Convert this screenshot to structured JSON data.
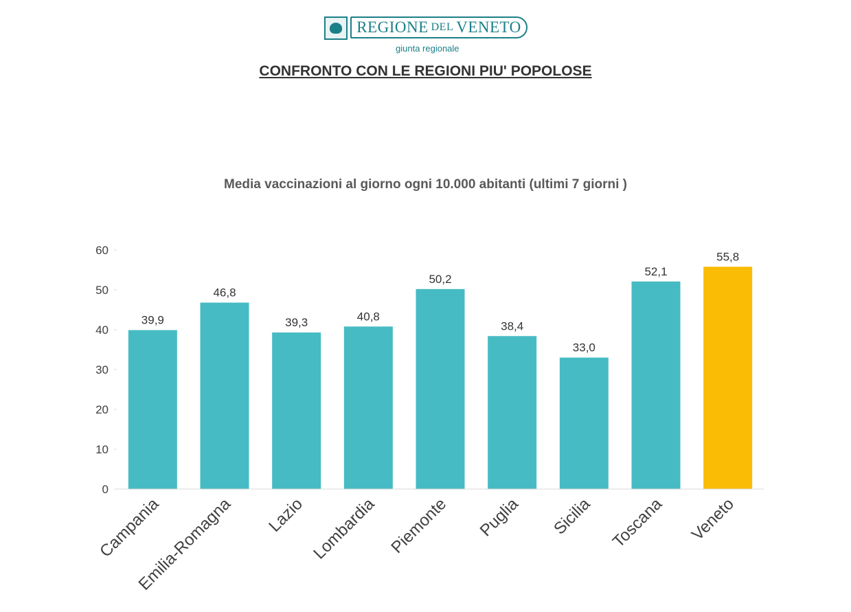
{
  "logo": {
    "name_part1": "REGIONE",
    "name_part2": "DEL",
    "name_part3": "VENETO",
    "subtitle": "giunta regionale"
  },
  "page_title": "CONFRONTO CON LE REGIONI PIU' POPOLOSE",
  "chart_data": {
    "type": "bar",
    "title": "Media vaccinazioni al giorno ogni 10.000 abitanti (ultimi 7 giorni )",
    "xlabel": "",
    "ylabel": "",
    "categories": [
      "Campania",
      "Emilia-Romagna",
      "Lazio",
      "Lombardia",
      "Piemonte",
      "Puglia",
      "Sicilia",
      "Toscana",
      "Veneto"
    ],
    "values": [
      39.9,
      46.8,
      39.3,
      40.8,
      50.2,
      38.4,
      33.0,
      52.1,
      55.8
    ],
    "value_labels": [
      "39,9",
      "46,8",
      "39,3",
      "40,8",
      "50,2",
      "38,4",
      "33,0",
      "52,1",
      "55,8"
    ],
    "ylim": [
      0,
      60
    ],
    "yticks": [
      0,
      10,
      20,
      30,
      40,
      50,
      60
    ],
    "grid": false,
    "colors": {
      "default": "#47bbc4",
      "highlight": "#fbbc05",
      "highlight_category": "Veneto"
    }
  }
}
